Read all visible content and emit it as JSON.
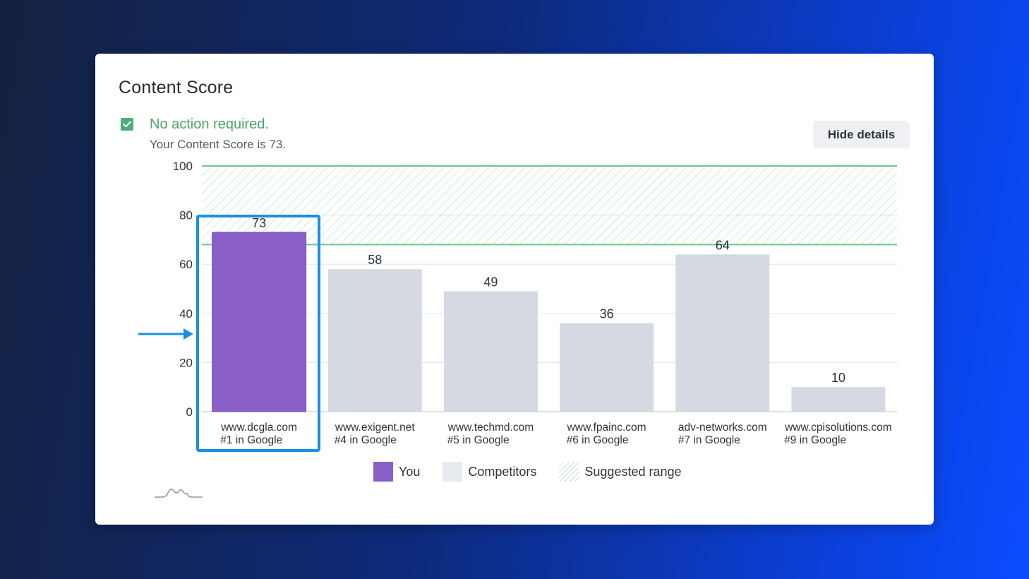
{
  "card": {
    "title": "Content Score",
    "status": "No action required.",
    "status_detail": "Your Content Score is 73.",
    "hide_button": "Hide details"
  },
  "colors": {
    "you": "#8a5fc8",
    "competitors": "#d5dae2",
    "suggested_range": "#4caf7a",
    "highlight": "#1c8fe4"
  },
  "icons": [
    "checkbox-checked-icon",
    "arrow-right-icon",
    "brand-mountain-icon"
  ],
  "chart_data": {
    "type": "bar",
    "title": "",
    "xlabel": "",
    "ylabel": "",
    "ylim": [
      0,
      100
    ],
    "yticks": [
      0,
      20,
      40,
      60,
      80,
      100
    ],
    "grid": true,
    "categories": [
      {
        "domain": "www.dcgla.com",
        "rank": "#1 in Google"
      },
      {
        "domain": "www.exigent.net",
        "rank": "#4 in Google"
      },
      {
        "domain": "www.techmd.com",
        "rank": "#5 in Google"
      },
      {
        "domain": "www.fpainc.com",
        "rank": "#6 in Google"
      },
      {
        "domain": "adv-networks.com",
        "rank": "#7 in Google"
      },
      {
        "domain": "www.cpisolutions.com",
        "rank": "#9 in Google"
      }
    ],
    "values": [
      73,
      58,
      49,
      36,
      64,
      10
    ],
    "groups": [
      "you",
      "competitor",
      "competitor",
      "competitor",
      "competitor",
      "competitor"
    ],
    "suggested_range": [
      68,
      100
    ],
    "legend": {
      "position": "bottom",
      "items": [
        "You",
        "Competitors",
        "Suggested range"
      ]
    }
  }
}
